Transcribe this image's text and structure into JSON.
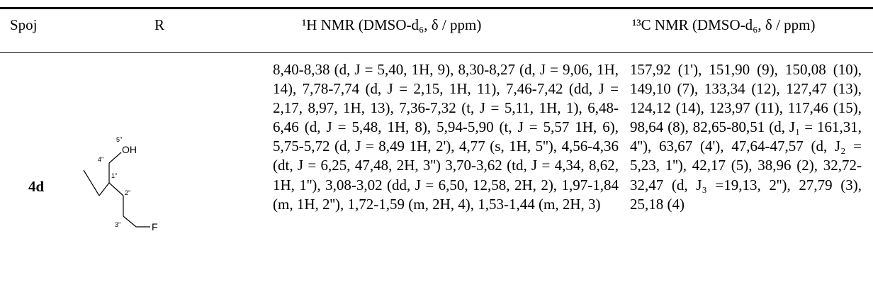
{
  "headers": {
    "compound": "Spoj",
    "r": "R",
    "h_nmr": "¹H NMR (DMSO-d₆, δ / ppm)",
    "c_nmr": "¹³C NMR (DMSO-d₆, δ / ppm)"
  },
  "row": {
    "compound": "4d",
    "structure": {
      "oh_label": "OH",
      "f_label": "F",
      "atom_labels": [
        "5''",
        "4''",
        "1''",
        "2''",
        "3''"
      ]
    },
    "h_nmr_text": "8,40-8,38 (d, J = 5,40, 1H, 9), 8,30-8,27 (d, J = 9,06, 1H, 14), 7,78-7,74 (d, J = 2,15, 1H, 11), 7,46-7,42 (dd, J = 2,17, 8,97, 1H, 13), 7,36-7,32 (t, J = 5,11, 1H, 1), 6,48-6,46 (d, J = 5,48, 1H, 8), 5,94-5,90 (t, J = 5,57 1H, 6), 5,75-5,72 (d, J = 8,49 1H, 2'), 4,77 (s, 1H, 5''), 4,56-4,36 (dt, J = 6,25, 47,48, 2H, 3'') 3,70-3,62 (td, J = 4,34, 8,62, 1H, 1''), 3,08-3,02 (dd, J = 6,50, 12,58, 2H, 2), 1,97-1,84 (m, 1H, 2''), 1,72-1,59 (m, 2H, 4), 1,53-1,44 (m, 2H, 3)",
    "c_nmr_text": "157,92 (1'), 151,90 (9), 150,08 (10), 149,10 (7), 133,34 (12), 127,47 (13), 124,12 (14), 123,97 (11), 117,46 (15), 98,64 (8), 82,65-80,51 (d, J₁ = 161,31, 4''), 63,67 (4'), 47,64-47,57 (d, J₂ = 5,23, 1''), 42,17 (5), 38,96 (2), 32,72-32,47 (d, J₃ =19,13, 2''), 27,79 (3), 25,18 (4)"
  }
}
